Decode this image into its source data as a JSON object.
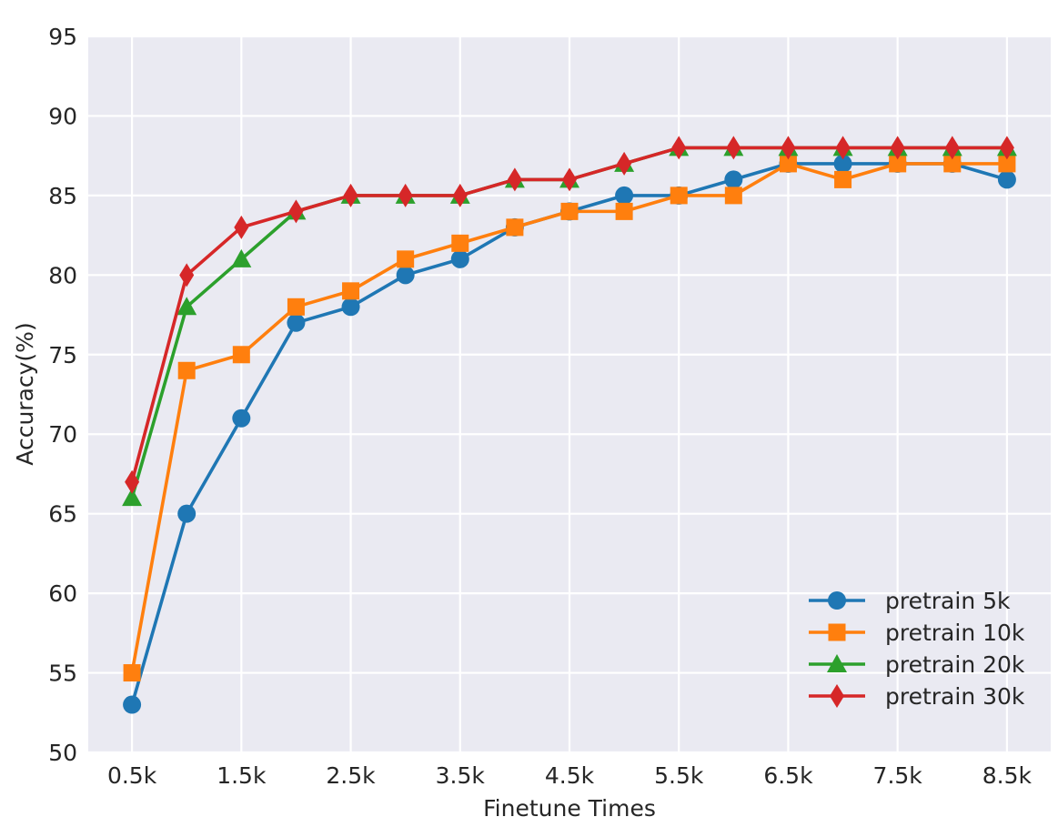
{
  "chart_data": {
    "type": "line",
    "xlabel": "Finetune Times",
    "ylabel": "Accuracy(%)",
    "x": [
      0.5,
      1.0,
      1.5,
      2.0,
      2.5,
      3.0,
      3.5,
      4.0,
      4.5,
      5.0,
      5.5,
      6.0,
      6.5,
      7.0,
      7.5,
      8.0,
      8.5
    ],
    "xticks": [
      0.5,
      1.5,
      2.5,
      3.5,
      4.5,
      5.5,
      6.5,
      7.5,
      8.5
    ],
    "xtick_labels": [
      "0.5k",
      "1.5k",
      "2.5k",
      "3.5k",
      "4.5k",
      "5.5k",
      "6.5k",
      "7.5k",
      "8.5k"
    ],
    "xlim": [
      0.1,
      8.9
    ],
    "ylim": [
      50,
      95
    ],
    "yticks": [
      50,
      55,
      60,
      65,
      70,
      75,
      80,
      85,
      90,
      95
    ],
    "ytick_labels": [
      "50",
      "55",
      "60",
      "65",
      "70",
      "75",
      "80",
      "85",
      "90",
      "95"
    ],
    "grid": true,
    "background": "#eaeaf2",
    "legend_position": "bottom-right",
    "series": [
      {
        "name": "pretrain 5k",
        "color": "#1f77b4",
        "marker": "circle",
        "values": [
          53,
          65,
          71,
          77,
          78,
          80,
          81,
          83,
          84,
          85,
          85,
          86,
          87,
          87,
          87,
          87,
          86
        ]
      },
      {
        "name": "pretrain 10k",
        "color": "#ff7f0e",
        "marker": "square",
        "values": [
          55,
          74,
          75,
          78,
          79,
          81,
          82,
          83,
          84,
          84,
          85,
          85,
          87,
          86,
          87,
          87,
          87
        ]
      },
      {
        "name": "pretrain 20k",
        "color": "#2ca02c",
        "marker": "triangle",
        "values": [
          66,
          78,
          81,
          84,
          85,
          85,
          85,
          86,
          86,
          87,
          88,
          88,
          88,
          88,
          88,
          88,
          88
        ]
      },
      {
        "name": "pretrain 30k",
        "color": "#d62728",
        "marker": "diamond",
        "values": [
          67,
          80,
          83,
          84,
          85,
          85,
          85,
          86,
          86,
          87,
          88,
          88,
          88,
          88,
          88,
          88,
          88
        ]
      }
    ]
  }
}
